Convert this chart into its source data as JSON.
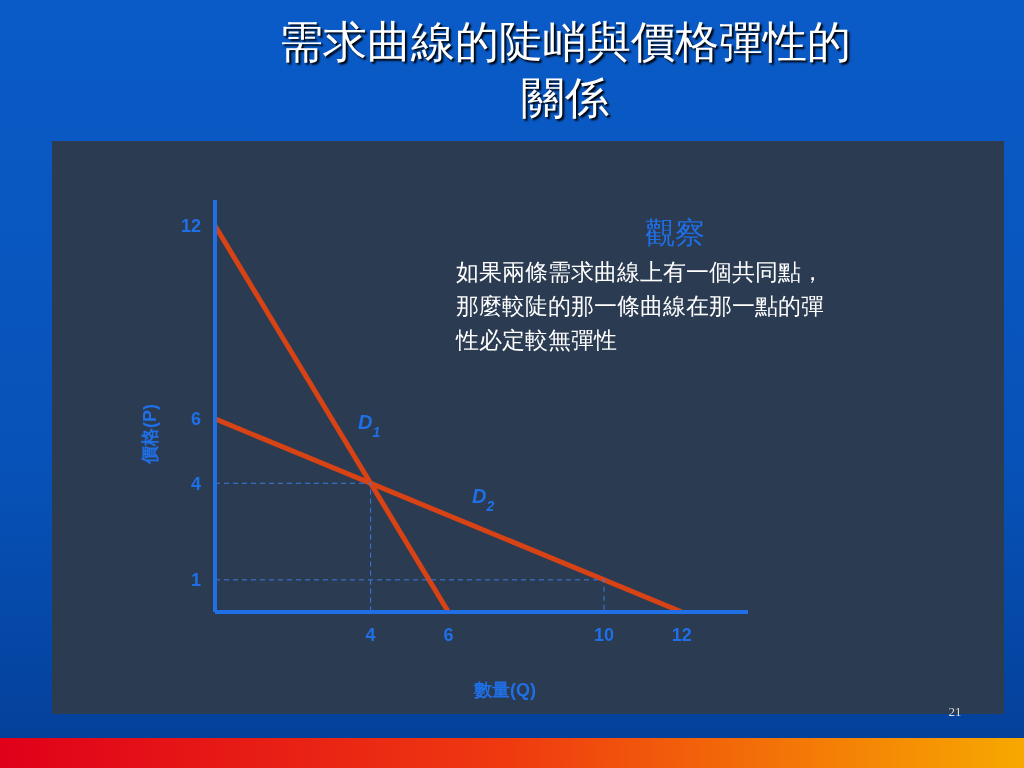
{
  "chart_data": {
    "type": "line",
    "title": "需求曲線的陡峭與價格彈性的關係",
    "xlabel": "數量(Q)",
    "ylabel": "價格(P)",
    "xlim": [
      0,
      13.7
    ],
    "ylim": [
      0,
      12.8
    ],
    "xticks": [
      4,
      6,
      10,
      12
    ],
    "yticks": [
      1,
      4,
      6,
      12
    ],
    "grid": false,
    "marker": "none",
    "series": [
      {
        "name": "D$_{1}$",
        "color": "#d84315",
        "x": [
          0,
          6
        ],
        "values": [
          12,
          0
        ]
      },
      {
        "name": "D$_{2}$",
        "color": "#d84315",
        "x": [
          0,
          12
        ],
        "values": [
          6,
          0
        ]
      },
      {
        "color": "#3d7be0",
        "line_style": "dashed",
        "x": [
          0,
          4,
          4
        ],
        "values": [
          4,
          4,
          0
        ]
      },
      {
        "color": "#3d7be0",
        "line_style": "dashed",
        "x": [
          0,
          10,
          10
        ],
        "values": [
          1,
          1,
          0
        ]
      }
    ],
    "annotations": [
      "觀察",
      "如果兩條需求曲線上有一個共同點，那麼較陡的那一條曲線在那一點的彈性必定較無彈性",
      "21"
    ]
  }
}
